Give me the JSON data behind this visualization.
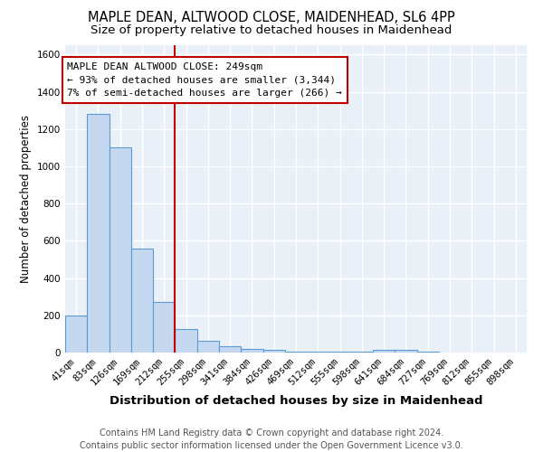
{
  "title": "MAPLE DEAN, ALTWOOD CLOSE, MAIDENHEAD, SL6 4PP",
  "subtitle": "Size of property relative to detached houses in Maidenhead",
  "xlabel": "Distribution of detached houses by size in Maidenhead",
  "ylabel": "Number of detached properties",
  "footer": "Contains HM Land Registry data © Crown copyright and database right 2024.\nContains public sector information licensed under the Open Government Licence v3.0.",
  "categories": [
    "41sqm",
    "83sqm",
    "126sqm",
    "169sqm",
    "212sqm",
    "255sqm",
    "298sqm",
    "341sqm",
    "384sqm",
    "426sqm",
    "469sqm",
    "512sqm",
    "555sqm",
    "598sqm",
    "641sqm",
    "684sqm",
    "727sqm",
    "769sqm",
    "812sqm",
    "855sqm",
    "898sqm"
  ],
  "values": [
    200,
    1280,
    1100,
    560,
    270,
    125,
    65,
    35,
    20,
    15,
    5,
    5,
    5,
    5,
    15,
    15,
    3,
    0,
    0,
    0,
    0
  ],
  "bar_color": "#c5d8f0",
  "bar_edge_color": "#5b9bd5",
  "vline_index": 5,
  "vline_color": "#c00000",
  "annotation_text": "MAPLE DEAN ALTWOOD CLOSE: 249sqm\n← 93% of detached houses are smaller (3,344)\n7% of semi-detached houses are larger (266) →",
  "annotation_box_color": "#ffffff",
  "annotation_box_edge": "#c00000",
  "ylim": [
    0,
    1650
  ],
  "yticks": [
    0,
    200,
    400,
    600,
    800,
    1000,
    1200,
    1400,
    1600
  ],
  "background_color": "#eaf0f8",
  "grid_color": "#ffffff",
  "title_fontsize": 10.5,
  "subtitle_fontsize": 9.5,
  "xlabel_fontsize": 9.5,
  "ylabel_fontsize": 8.5,
  "tick_fontsize": 7.5,
  "annot_fontsize": 8.0,
  "footer_fontsize": 7.0
}
